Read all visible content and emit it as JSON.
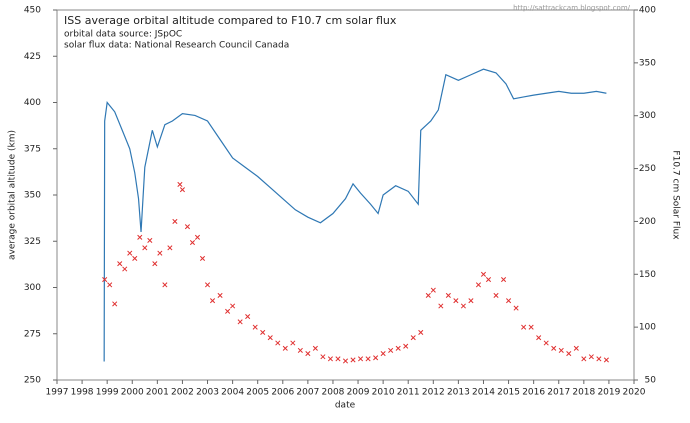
{
  "chart_data": {
    "type": "line",
    "title": "ISS average orbital altitude compared to F10.7 cm solar flux",
    "subtitle": [
      "orbital data source: JSpOC",
      "solar flux data: National Research Council Canada"
    ],
    "watermark": "http://sattrackcam.blogspot.com/",
    "xlabel": "date",
    "ylabel": "average orbital altitude (km)",
    "y2label": "F10.7 cm Solar Flux",
    "xlim": [
      1997,
      2020
    ],
    "xticks": [
      1997,
      1998,
      1999,
      2000,
      2001,
      2002,
      2003,
      2004,
      2005,
      2006,
      2007,
      2008,
      2009,
      2010,
      2011,
      2012,
      2013,
      2014,
      2015,
      2016,
      2017,
      2018,
      2019,
      2020
    ],
    "ylim": [
      250,
      450
    ],
    "yticks": [
      250,
      275,
      300,
      325,
      350,
      375,
      400,
      425,
      450
    ],
    "y2lim": [
      50,
      400
    ],
    "y2ticks": [
      50,
      100,
      150,
      200,
      250,
      300,
      350,
      400
    ],
    "grid": false,
    "series": [
      {
        "type": "line",
        "color": "#2f78b4",
        "axis": "y",
        "x": [
          1998.88,
          1998.9,
          1999.0,
          1999.3,
          1999.6,
          1999.9,
          2000.1,
          2000.25,
          2000.35,
          2000.5,
          2000.8,
          2001.0,
          2001.3,
          2001.6,
          2002.0,
          2002.5,
          2003.0,
          2003.5,
          2004.0,
          2004.5,
          2005.0,
          2005.5,
          2006.0,
          2006.5,
          2007.0,
          2007.5,
          2008.0,
          2008.5,
          2008.8,
          2009.1,
          2009.5,
          2009.8,
          2010.0,
          2010.5,
          2011.0,
          2011.4,
          2011.5,
          2011.9,
          2012.2,
          2012.5,
          2013.0,
          2013.5,
          2014.0,
          2014.5,
          2014.9,
          2015.2,
          2015.6,
          2016.0,
          2016.5,
          2017.0,
          2017.5,
          2018.0,
          2018.5,
          2018.9
        ],
        "values": [
          260,
          390,
          400,
          395,
          385,
          375,
          362,
          348,
          330,
          365,
          385,
          376,
          388,
          390,
          394,
          393,
          390,
          380,
          370,
          365,
          360,
          354,
          348,
          342,
          338,
          335,
          340,
          348,
          356,
          351,
          345,
          340,
          350,
          355,
          352,
          345,
          385,
          390,
          396,
          415,
          412,
          415,
          418,
          416,
          410,
          402,
          403,
          404,
          405,
          406,
          405,
          405,
          406,
          405
        ]
      },
      {
        "type": "scatter",
        "color": "#e03030",
        "axis": "y2",
        "x": [
          1998.9,
          1999.1,
          1999.3,
          1999.5,
          1999.7,
          1999.9,
          2000.1,
          2000.3,
          2000.5,
          2000.7,
          2000.9,
          2001.1,
          2001.3,
          2001.5,
          2001.7,
          2001.9,
          2002.0,
          2002.2,
          2002.4,
          2002.6,
          2002.8,
          2003.0,
          2003.2,
          2003.5,
          2003.8,
          2004.0,
          2004.3,
          2004.6,
          2004.9,
          2005.2,
          2005.5,
          2005.8,
          2006.1,
          2006.4,
          2006.7,
          2007.0,
          2007.3,
          2007.6,
          2007.9,
          2008.2,
          2008.5,
          2008.8,
          2009.1,
          2009.4,
          2009.7,
          2010.0,
          2010.3,
          2010.6,
          2010.9,
          2011.2,
          2011.5,
          2011.8,
          2012.0,
          2012.3,
          2012.6,
          2012.9,
          2013.2,
          2013.5,
          2013.8,
          2014.0,
          2014.2,
          2014.5,
          2014.8,
          2015.0,
          2015.3,
          2015.6,
          2015.9,
          2016.2,
          2016.5,
          2016.8,
          2017.1,
          2017.4,
          2017.7,
          2018.0,
          2018.3,
          2018.6,
          2018.9
        ],
        "values": [
          145,
          140,
          122,
          160,
          155,
          170,
          165,
          185,
          175,
          182,
          160,
          170,
          140,
          175,
          200,
          235,
          230,
          195,
          180,
          185,
          165,
          140,
          125,
          130,
          115,
          120,
          105,
          110,
          100,
          95,
          90,
          85,
          80,
          85,
          78,
          75,
          80,
          72,
          70,
          70,
          68,
          69,
          70,
          70,
          71,
          75,
          78,
          80,
          82,
          90,
          95,
          130,
          135,
          120,
          130,
          125,
          120,
          125,
          140,
          150,
          145,
          130,
          145,
          125,
          118,
          100,
          100,
          90,
          85,
          80,
          78,
          75,
          80,
          70,
          72,
          70,
          69
        ]
      }
    ]
  }
}
